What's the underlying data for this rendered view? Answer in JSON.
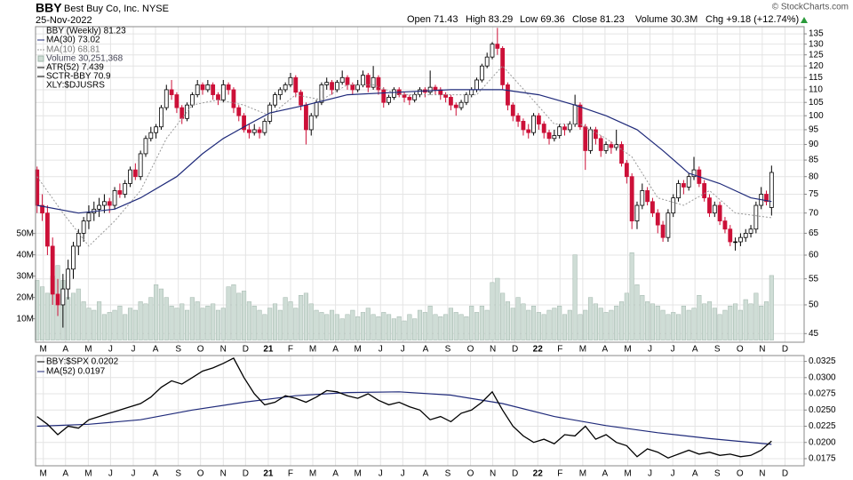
{
  "chart_data": {
    "type": "candlestick",
    "header": {
      "symbol": "BBY",
      "company": "Best Buy Co, Inc.",
      "exchange": "NYSE",
      "date": "25-Nov-2022",
      "open": "Open 71.43",
      "high": "High 83.29",
      "low": "Low 69.36",
      "close": "Close 81.23",
      "volume": "Volume 30.3M",
      "change": "Chg +9.18 (+12.74%)",
      "credit": "© StockCharts.com"
    },
    "legend": {
      "price": "BBY (Weekly) 81.23",
      "volume": "Volume 30,251,368",
      "atr": "ATR(52) 7.439",
      "sctr": "SCTR-BBY 70.9",
      "sector": "XLY:$DJUSRS"
    },
    "log_scale": true,
    "grid": true,
    "xlim": [
      -0.3,
      148.3
    ],
    "xticks": [
      {
        "value": 1.2,
        "label": "M"
      },
      {
        "value": 5.5,
        "label": "A"
      },
      {
        "value": 9.9,
        "label": "M"
      },
      {
        "value": 14.2,
        "label": "J"
      },
      {
        "value": 18.6,
        "label": "J"
      },
      {
        "value": 22.9,
        "label": "A"
      },
      {
        "value": 27.3,
        "label": "S"
      },
      {
        "value": 31.6,
        "label": "O"
      },
      {
        "value": 36.0,
        "label": "N"
      },
      {
        "value": 40.3,
        "label": "D"
      },
      {
        "value": 44.7,
        "label": "21"
      },
      {
        "value": 49.0,
        "label": "F"
      },
      {
        "value": 53.3,
        "label": "M"
      },
      {
        "value": 57.7,
        "label": "A"
      },
      {
        "value": 62.0,
        "label": "M"
      },
      {
        "value": 66.4,
        "label": "J"
      },
      {
        "value": 70.7,
        "label": "J"
      },
      {
        "value": 75.1,
        "label": "A"
      },
      {
        "value": 79.4,
        "label": "S"
      },
      {
        "value": 83.8,
        "label": "O"
      },
      {
        "value": 88.1,
        "label": "N"
      },
      {
        "value": 92.4,
        "label": "D"
      },
      {
        "value": 96.8,
        "label": "22"
      },
      {
        "value": 101.1,
        "label": "F"
      },
      {
        "value": 105.5,
        "label": "M"
      },
      {
        "value": 109.8,
        "label": "A"
      },
      {
        "value": 114.2,
        "label": "M"
      },
      {
        "value": 118.5,
        "label": "J"
      },
      {
        "value": 122.9,
        "label": "J"
      },
      {
        "value": 127.2,
        "label": "A"
      },
      {
        "value": 131.5,
        "label": "S"
      },
      {
        "value": 135.9,
        "label": "O"
      },
      {
        "value": 140.2,
        "label": "N"
      },
      {
        "value": 144.6,
        "label": "D"
      }
    ],
    "ylim": [
      43.6,
      138.6
    ],
    "yticks": [
      45,
      50,
      55,
      60,
      65,
      70,
      75,
      80,
      85,
      90,
      95,
      100,
      105,
      110,
      115,
      120,
      125,
      130,
      135
    ],
    "up_color": "#000000",
    "down_color": "#cc1038",
    "candles": [
      [
        82,
        83,
        70,
        72
      ],
      [
        72,
        75,
        68,
        70
      ],
      [
        70,
        72,
        60,
        62
      ],
      [
        62,
        64,
        50,
        52
      ],
      [
        52,
        55,
        48,
        50
      ],
      [
        50,
        56,
        46,
        53
      ],
      [
        53,
        59,
        51,
        57
      ],
      [
        57,
        63,
        55,
        62
      ],
      [
        62,
        66,
        60,
        65
      ],
      [
        65,
        69,
        63,
        68
      ],
      [
        68,
        72,
        66,
        70
      ],
      [
        70,
        73,
        68,
        71
      ],
      [
        71,
        74,
        69,
        72
      ],
      [
        72,
        75,
        70,
        73
      ],
      [
        73,
        74,
        70,
        72
      ],
      [
        72,
        77,
        71,
        76
      ],
      [
        76,
        78,
        74,
        75
      ],
      [
        75,
        79,
        74,
        78
      ],
      [
        78,
        83,
        77,
        82
      ],
      [
        82,
        84,
        79,
        80
      ],
      [
        80,
        88,
        79,
        87
      ],
      [
        87,
        93,
        86,
        92
      ],
      [
        92,
        96,
        91,
        94
      ],
      [
        94,
        97,
        92,
        96
      ],
      [
        96,
        104,
        95,
        103
      ],
      [
        103,
        112,
        102,
        110
      ],
      [
        110,
        114,
        106,
        108
      ],
      [
        108,
        109,
        101,
        103
      ],
      [
        103,
        104,
        97,
        99
      ],
      [
        99,
        105,
        98,
        104
      ],
      [
        104,
        109,
        103,
        108
      ],
      [
        108,
        114,
        107,
        112
      ],
      [
        112,
        113,
        108,
        110
      ],
      [
        110,
        114,
        109,
        112
      ],
      [
        112,
        113,
        106,
        108
      ],
      [
        108,
        109,
        104,
        106
      ],
      [
        106,
        114,
        105,
        112
      ],
      [
        112,
        113,
        108,
        110
      ],
      [
        110,
        111,
        101,
        103
      ],
      [
        103,
        104,
        98,
        100
      ],
      [
        100,
        101,
        94,
        95
      ],
      [
        95,
        97,
        92,
        94
      ],
      [
        94,
        97,
        93,
        95
      ],
      [
        95,
        96,
        92,
        94
      ],
      [
        94,
        99,
        93,
        98
      ],
      [
        98,
        105,
        97,
        104
      ],
      [
        104,
        109,
        103,
        108
      ],
      [
        108,
        111,
        106,
        110
      ],
      [
        110,
        113,
        109,
        112
      ],
      [
        112,
        117,
        111,
        115
      ],
      [
        115,
        116,
        107,
        109
      ],
      [
        109,
        110,
        102,
        104
      ],
      [
        104,
        105,
        90,
        95
      ],
      [
        95,
        101,
        93,
        100
      ],
      [
        100,
        106,
        99,
        105
      ],
      [
        105,
        113,
        104,
        112
      ],
      [
        112,
        115,
        110,
        113
      ],
      [
        113,
        114,
        108,
        110
      ],
      [
        110,
        114,
        109,
        113
      ],
      [
        113,
        118,
        112,
        115
      ],
      [
        115,
        116,
        110,
        112
      ],
      [
        112,
        113,
        108,
        110
      ],
      [
        110,
        114,
        109,
        112
      ],
      [
        112,
        118,
        111,
        116
      ],
      [
        116,
        117,
        109,
        111
      ],
      [
        111,
        120,
        110,
        115
      ],
      [
        115,
        116,
        108,
        110
      ],
      [
        110,
        111,
        103,
        105
      ],
      [
        105,
        108,
        104,
        107
      ],
      [
        107,
        111,
        106,
        110
      ],
      [
        110,
        111,
        107,
        108
      ],
      [
        108,
        109,
        105,
        107
      ],
      [
        107,
        108,
        104,
        106
      ],
      [
        106,
        109,
        105,
        108
      ],
      [
        108,
        111,
        107,
        110
      ],
      [
        110,
        111,
        107,
        109
      ],
      [
        109,
        118,
        108,
        111
      ],
      [
        111,
        112,
        108,
        110
      ],
      [
        110,
        111,
        106,
        108
      ],
      [
        108,
        109,
        105,
        107
      ],
      [
        107,
        108,
        102,
        104
      ],
      [
        104,
        105,
        100,
        103
      ],
      [
        103,
        106,
        102,
        105
      ],
      [
        105,
        109,
        104,
        108
      ],
      [
        108,
        111,
        107,
        110
      ],
      [
        110,
        115,
        109,
        114
      ],
      [
        114,
        121,
        113,
        120
      ],
      [
        120,
        126,
        119,
        124
      ],
      [
        124,
        131,
        123,
        130
      ],
      [
        130,
        138,
        125,
        128
      ],
      [
        128,
        129,
        110,
        112
      ],
      [
        112,
        113,
        102,
        104
      ],
      [
        104,
        105,
        98,
        100
      ],
      [
        100,
        101,
        96,
        98
      ],
      [
        98,
        99,
        93,
        95
      ],
      [
        95,
        97,
        92,
        94
      ],
      [
        94,
        101,
        93,
        100
      ],
      [
        100,
        101,
        95,
        97
      ],
      [
        97,
        98,
        92,
        94
      ],
      [
        94,
        95,
        90,
        92
      ],
      [
        92,
        95,
        91,
        93
      ],
      [
        93,
        97,
        92,
        96
      ],
      [
        96,
        97,
        93,
        95
      ],
      [
        95,
        98,
        94,
        97
      ],
      [
        97,
        108,
        96,
        104
      ],
      [
        104,
        105,
        95,
        96
      ],
      [
        96,
        97,
        82,
        88
      ],
      [
        88,
        96,
        87,
        95
      ],
      [
        95,
        96,
        90,
        92
      ],
      [
        92,
        93,
        86,
        88
      ],
      [
        88,
        91,
        87,
        90
      ],
      [
        90,
        91,
        87,
        89
      ],
      [
        89,
        95,
        88,
        90
      ],
      [
        90,
        91,
        83,
        84
      ],
      [
        84,
        85,
        78,
        80
      ],
      [
        80,
        81,
        66,
        68
      ],
      [
        68,
        73,
        66,
        72
      ],
      [
        72,
        78,
        71,
        76
      ],
      [
        76,
        77,
        72,
        73
      ],
      [
        73,
        74,
        69,
        70
      ],
      [
        70,
        71,
        65,
        67
      ],
      [
        67,
        68,
        63,
        64
      ],
      [
        64,
        71,
        63,
        70
      ],
      [
        70,
        75,
        69,
        74
      ],
      [
        74,
        79,
        73,
        78
      ],
      [
        78,
        79,
        75,
        77
      ],
      [
        77,
        81,
        76,
        80
      ],
      [
        80,
        86,
        79,
        82
      ],
      [
        82,
        83,
        77,
        78
      ],
      [
        78,
        79,
        73,
        74
      ],
      [
        74,
        75,
        69,
        70
      ],
      [
        70,
        73,
        69,
        72
      ],
      [
        72,
        73,
        67,
        68
      ],
      [
        68,
        69,
        65,
        66
      ],
      [
        66,
        67,
        62,
        63
      ],
      [
        63,
        64,
        61,
        63
      ],
      [
        63,
        65,
        62,
        64
      ],
      [
        64,
        66,
        63,
        65
      ],
      [
        65,
        67,
        64,
        66
      ],
      [
        66,
        73,
        65,
        72
      ],
      [
        72,
        77,
        71,
        75
      ],
      [
        75,
        76,
        72,
        73
      ],
      [
        71.43,
        83.29,
        69.36,
        81.23
      ]
    ],
    "volume": {
      "color": "#cfddd6",
      "stroke": "#9fb5aa",
      "ylim": [
        -1,
        147
      ],
      "yticks": [
        {
          "value": 10,
          "label": "10M"
        },
        {
          "value": 20,
          "label": "20M"
        },
        {
          "value": 30,
          "label": "30M"
        },
        {
          "value": 40,
          "label": "40M"
        },
        {
          "value": 50,
          "label": "50M"
        }
      ],
      "values": [
        28,
        25,
        22,
        30,
        35,
        28,
        20,
        22,
        24,
        18,
        15,
        14,
        18,
        12,
        13,
        14,
        16,
        12,
        15,
        14,
        18,
        17,
        20,
        26,
        24,
        20,
        16,
        15,
        17,
        14,
        20,
        18,
        15,
        16,
        17,
        14,
        15,
        25,
        26,
        22,
        23,
        18,
        16,
        14,
        12,
        15,
        17,
        14,
        20,
        18,
        15,
        21,
        22,
        17,
        14,
        13,
        12,
        14,
        12,
        10,
        12,
        14,
        11,
        13,
        15,
        12,
        11,
        13,
        12,
        10,
        11,
        9,
        12,
        10,
        14,
        13,
        16,
        12,
        11,
        12,
        15,
        13,
        12,
        11,
        16,
        13,
        16,
        14,
        27,
        29,
        22,
        18,
        15,
        20,
        17,
        14,
        16,
        13,
        12,
        14,
        15,
        16,
        12,
        14,
        40,
        12,
        14,
        20,
        17,
        15,
        13,
        14,
        16,
        18,
        22,
        41,
        26,
        21,
        18,
        17,
        16,
        14,
        12,
        13,
        12,
        16,
        14,
        15,
        21,
        17,
        18,
        15,
        12,
        14,
        16,
        17,
        14,
        19,
        17,
        22,
        16,
        18,
        30.3
      ]
    },
    "ma30": {
      "name": "MA(30) 73.02",
      "color": "#1f2a7a",
      "x": [
        0,
        8,
        15,
        20,
        27,
        32,
        36,
        41,
        45,
        52,
        60,
        70,
        80,
        90,
        97,
        104,
        110,
        116,
        121,
        126,
        132,
        138,
        142
      ],
      "values": [
        72,
        70,
        71,
        74,
        80,
        87,
        92,
        97,
        101,
        104,
        108,
        109,
        110,
        110,
        108,
        104,
        100,
        95,
        88,
        81,
        78,
        74,
        73.02
      ]
    },
    "ma10": {
      "name": "MA(10) 68.81",
      "color": "#999999",
      "x": [
        0,
        5,
        10,
        15,
        20,
        25,
        30,
        35,
        40,
        45,
        50,
        55,
        60,
        65,
        70,
        75,
        80,
        85,
        90,
        95,
        100,
        105,
        110,
        115,
        120,
        125,
        130,
        135,
        142
      ],
      "values": [
        80,
        70,
        62,
        68,
        76,
        92,
        104,
        106,
        104,
        100,
        108,
        106,
        112,
        112,
        108,
        108,
        108,
        108,
        120,
        108,
        97,
        97,
        92,
        86,
        74,
        72,
        76,
        70,
        68.81
      ]
    },
    "lower": {
      "type": "line",
      "ylim": [
        0.0164,
        0.0334
      ],
      "yticks": [
        0.0175,
        {
          "value": 0.02,
          "label": "0.0200"
        },
        0.0225,
        {
          "value": 0.025,
          "label": "0.0250"
        },
        0.0275,
        {
          "value": 0.03,
          "label": "0.0300"
        },
        0.0325
      ],
      "ratio": {
        "name": "BBY:$SPX 0.0202",
        "color": "#000000",
        "x": [
          0,
          2,
          4,
          6,
          8,
          10,
          12,
          14,
          16,
          18,
          20,
          22,
          24,
          26,
          28,
          30,
          32,
          34,
          36,
          38,
          40,
          42,
          44,
          46,
          48,
          50,
          52,
          54,
          56,
          58,
          60,
          62,
          64,
          66,
          68,
          70,
          72,
          74,
          76,
          78,
          80,
          82,
          84,
          86,
          88,
          90,
          92,
          94,
          96,
          98,
          100,
          102,
          104,
          106,
          108,
          110,
          112,
          114,
          116,
          118,
          120,
          122,
          124,
          126,
          128,
          130,
          132,
          134,
          136,
          138,
          140,
          142
        ],
        "values": [
          0.024,
          0.0228,
          0.0212,
          0.0225,
          0.0222,
          0.0235,
          0.024,
          0.0245,
          0.025,
          0.0255,
          0.026,
          0.027,
          0.0285,
          0.0295,
          0.029,
          0.03,
          0.031,
          0.0315,
          0.0322,
          0.033,
          0.03,
          0.0275,
          0.0258,
          0.0262,
          0.0272,
          0.0268,
          0.0262,
          0.027,
          0.028,
          0.0278,
          0.0272,
          0.0268,
          0.0275,
          0.0265,
          0.0258,
          0.0262,
          0.0255,
          0.025,
          0.0235,
          0.024,
          0.0232,
          0.0245,
          0.025,
          0.0262,
          0.0278,
          0.025,
          0.0225,
          0.021,
          0.02,
          0.0205,
          0.0198,
          0.0212,
          0.021,
          0.0225,
          0.0205,
          0.0212,
          0.02,
          0.0195,
          0.0178,
          0.019,
          0.0185,
          0.0176,
          0.0182,
          0.0188,
          0.0182,
          0.0185,
          0.018,
          0.0182,
          0.0178,
          0.018,
          0.0188,
          0.0202
        ]
      },
      "ma52": {
        "name": "MA(52) 0.0197",
        "color": "#1f2a7a",
        "x": [
          0,
          10,
          20,
          30,
          40,
          50,
          60,
          70,
          80,
          90,
          100,
          110,
          120,
          130,
          142
        ],
        "values": [
          0.0225,
          0.0228,
          0.0235,
          0.025,
          0.0262,
          0.0272,
          0.0277,
          0.0278,
          0.0273,
          0.026,
          0.024,
          0.0226,
          0.0215,
          0.0206,
          0.0197
        ]
      }
    }
  }
}
